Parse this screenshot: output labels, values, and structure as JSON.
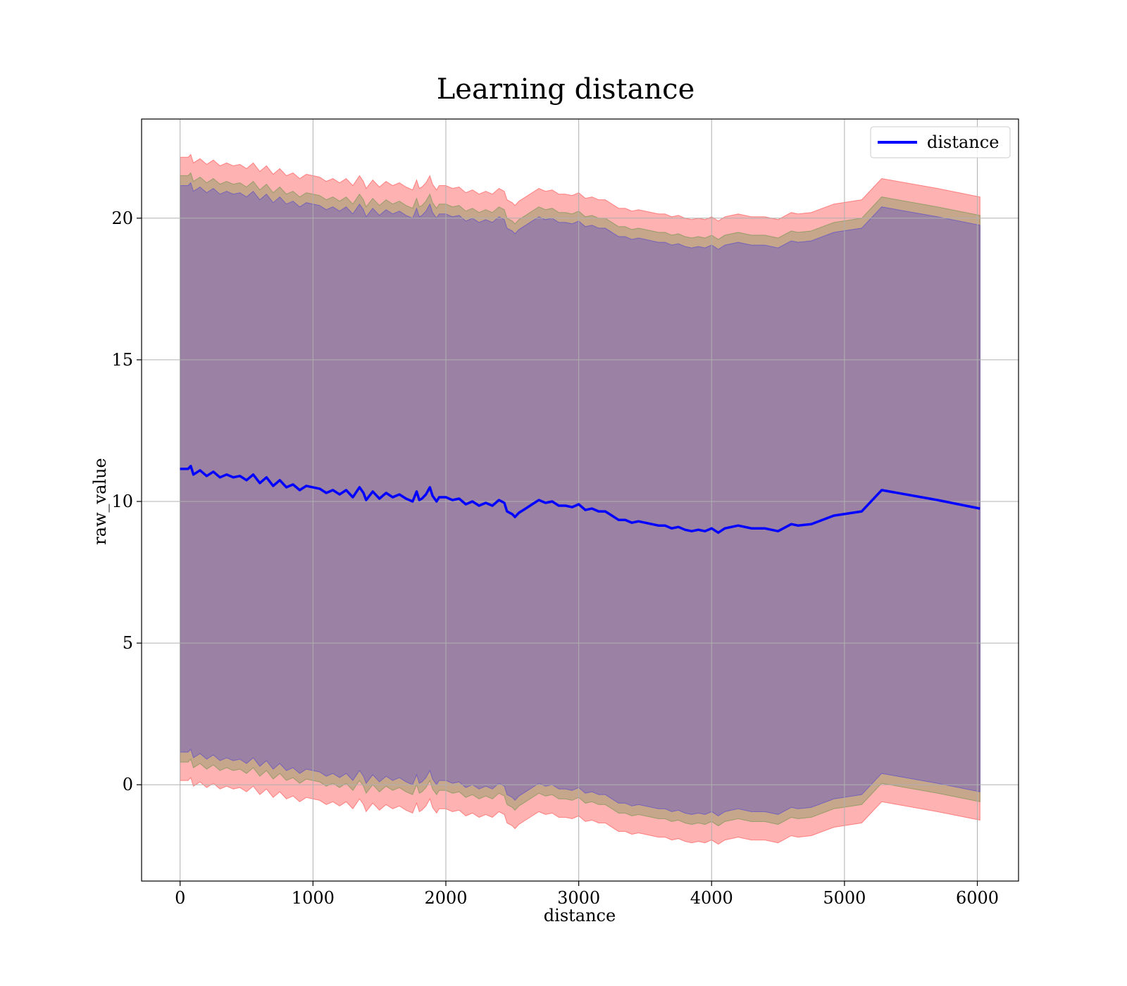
{
  "chart_data": {
    "type": "line",
    "title": "Learning distance",
    "xlabel": "distance",
    "ylabel": "raw_value",
    "xlim": [
      -290,
      6310
    ],
    "ylim": [
      -3.4,
      23.5
    ],
    "x_ticks": [
      0,
      1000,
      2000,
      3000,
      4000,
      5000,
      6000
    ],
    "y_ticks": [
      0,
      5,
      10,
      15,
      20
    ],
    "grid": true,
    "legend_position": "top-right",
    "series": [
      {
        "name": "distance",
        "color": "#0000ff",
        "x": [
          0,
          60,
          80,
          100,
          150,
          200,
          250,
          300,
          350,
          400,
          450,
          500,
          550,
          600,
          650,
          700,
          750,
          800,
          850,
          900,
          950,
          1000,
          1050,
          1100,
          1150,
          1200,
          1250,
          1300,
          1350,
          1380,
          1400,
          1450,
          1480,
          1500,
          1550,
          1600,
          1650,
          1700,
          1750,
          1780,
          1800,
          1820,
          1850,
          1880,
          1900,
          1930,
          1950,
          2000,
          2050,
          2100,
          2150,
          2200,
          2250,
          2300,
          2350,
          2400,
          2440,
          2460,
          2500,
          2520,
          2550,
          2600,
          2650,
          2700,
          2750,
          2800,
          2850,
          2900,
          2950,
          3000,
          3050,
          3100,
          3150,
          3200,
          3250,
          3300,
          3350,
          3400,
          3450,
          3500,
          3550,
          3600,
          3650,
          3700,
          3750,
          3800,
          3850,
          3900,
          3950,
          4000,
          4050,
          4100,
          4150,
          4200,
          4300,
          4400,
          4500,
          4600,
          4650,
          4750,
          4920,
          5130,
          5280,
          5700,
          6020
        ],
        "y": [
          11.15,
          11.15,
          11.25,
          10.95,
          11.1,
          10.9,
          11.05,
          10.85,
          10.95,
          10.85,
          10.9,
          10.75,
          10.95,
          10.65,
          10.85,
          10.55,
          10.75,
          10.5,
          10.6,
          10.4,
          10.55,
          10.5,
          10.45,
          10.3,
          10.4,
          10.25,
          10.4,
          10.15,
          10.5,
          10.3,
          10.05,
          10.35,
          10.2,
          10.1,
          10.3,
          10.15,
          10.25,
          10.1,
          10.0,
          10.35,
          10.05,
          10.1,
          10.25,
          10.5,
          10.2,
          10.0,
          10.15,
          10.15,
          10.05,
          10.1,
          9.9,
          10.0,
          9.85,
          9.95,
          9.85,
          10.05,
          9.95,
          9.65,
          9.55,
          9.45,
          9.6,
          9.75,
          9.9,
          10.05,
          9.95,
          10.0,
          9.85,
          9.85,
          9.8,
          9.9,
          9.7,
          9.75,
          9.65,
          9.65,
          9.5,
          9.35,
          9.35,
          9.25,
          9.3,
          9.25,
          9.2,
          9.15,
          9.15,
          9.05,
          9.1,
          9.0,
          8.95,
          9.0,
          8.95,
          9.05,
          8.9,
          9.05,
          9.1,
          9.15,
          9.05,
          9.05,
          8.95,
          9.2,
          9.15,
          9.2,
          9.5,
          9.65,
          10.4,
          10.05,
          9.75
        ]
      }
    ],
    "bands": [
      {
        "color": "#ff0000",
        "opacity": 0.3,
        "half_width": 11.0
      },
      {
        "color": "#008000",
        "opacity": 0.22,
        "half_width": 10.35
      },
      {
        "color": "#0000ff",
        "opacity": 0.22,
        "half_width": 10.0
      }
    ]
  }
}
